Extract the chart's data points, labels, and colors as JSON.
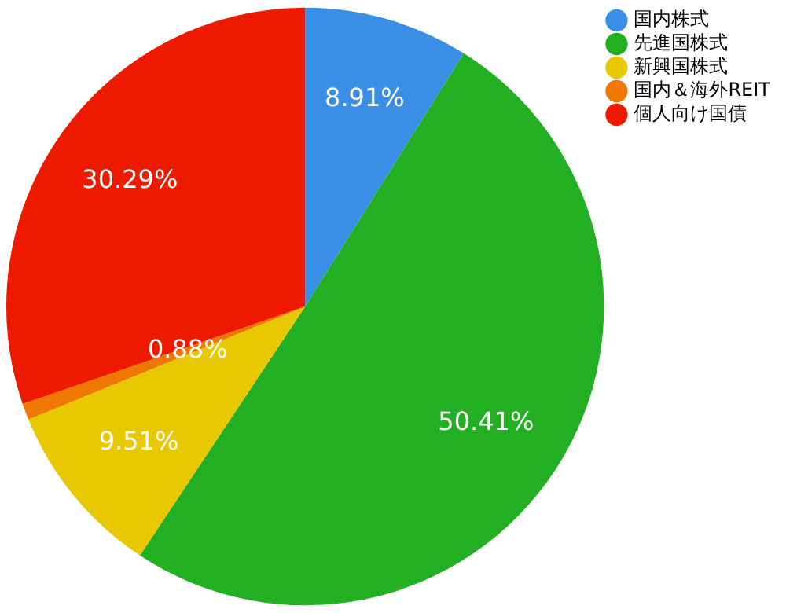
{
  "chart_data": {
    "type": "pie",
    "categories": [
      "国内株式",
      "先進国株式",
      "新興国株式",
      "国内＆海外REIT",
      "個人向け国債"
    ],
    "values": [
      8.91,
      50.41,
      9.51,
      0.88,
      30.29
    ],
    "colors": [
      "#3a8ee6",
      "#22b022",
      "#e8c800",
      "#f07800",
      "#ee1a00"
    ],
    "value_labels": [
      "8.91%",
      "50.41%",
      "9.51%",
      "0.88%",
      "30.29%"
    ],
    "legend": "top right"
  }
}
